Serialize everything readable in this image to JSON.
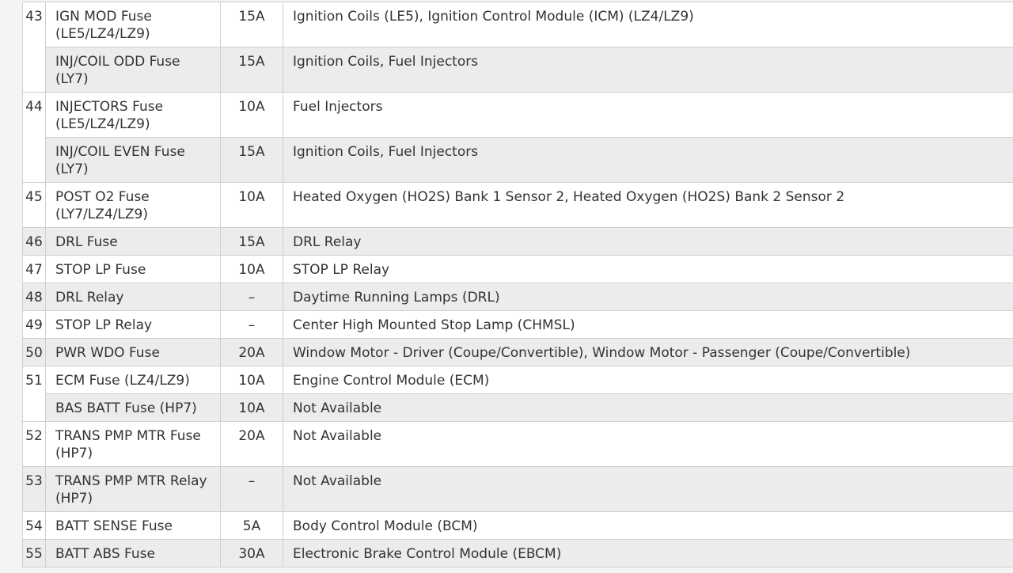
{
  "rows": [
    {
      "num": "43",
      "name": "IGN MOD Fuse (LE5/LZ4/LZ9)",
      "amp": "15A",
      "desc": "Ignition Coils (LE5), Ignition Control Module (ICM) (LZ4/LZ9)"
    },
    {
      "num": "",
      "name": "INJ/COIL ODD Fuse (LY7)",
      "amp": "15A",
      "desc": "Ignition Coils, Fuel Injectors"
    },
    {
      "num": "44",
      "name": "INJECTORS Fuse (LE5/LZ4/LZ9)",
      "amp": "10A",
      "desc": "Fuel Injectors"
    },
    {
      "num": "",
      "name": "INJ/COIL EVEN Fuse (LY7)",
      "amp": "15A",
      "desc": "Ignition Coils, Fuel Injectors"
    },
    {
      "num": "45",
      "name": "POST O2 Fuse (LY7/LZ4/LZ9)",
      "amp": "10A",
      "desc": "Heated Oxygen (HO2S) Bank 1 Sensor 2, Heated Oxygen (HO2S) Bank 2 Sensor 2"
    },
    {
      "num": "46",
      "name": "DRL Fuse",
      "amp": "15A",
      "desc": "DRL Relay"
    },
    {
      "num": "47",
      "name": "STOP LP Fuse",
      "amp": "10A",
      "desc": "STOP LP Relay"
    },
    {
      "num": "48",
      "name": "DRL Relay",
      "amp": "–",
      "desc": "Daytime Running Lamps (DRL)"
    },
    {
      "num": "49",
      "name": "STOP LP Relay",
      "amp": "–",
      "desc": "Center High Mounted Stop Lamp (CHMSL)"
    },
    {
      "num": "50",
      "name": "PWR WDO Fuse",
      "amp": "20A",
      "desc": "Window Motor - Driver (Coupe/Convertible), Window Motor - Passenger (Coupe/Convertible)"
    },
    {
      "num": "51",
      "name": "ECM Fuse (LZ4/LZ9)",
      "amp": "10A",
      "desc": "Engine Control Module (ECM)"
    },
    {
      "num": "",
      "name": "BAS BATT Fuse (HP7)",
      "amp": "10A",
      "desc": "Not Available"
    },
    {
      "num": "52",
      "name": "TRANS PMP MTR Fuse (HP7)",
      "amp": "20A",
      "desc": "Not Available"
    },
    {
      "num": "53",
      "name": "TRANS PMP MTR Relay (HP7)",
      "amp": "–",
      "desc": "Not Available"
    },
    {
      "num": "54",
      "name": "BATT SENSE Fuse",
      "amp": "5A",
      "desc": "Body Control Module (BCM)"
    },
    {
      "num": "55",
      "name": "BATT ABS Fuse",
      "amp": "30A",
      "desc": "Electronic Brake Control Module (EBCM)"
    }
  ]
}
